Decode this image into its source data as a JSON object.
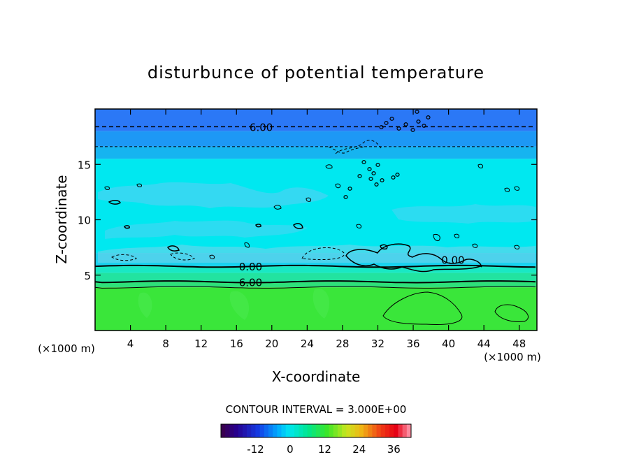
{
  "chart_data": {
    "type": "heatmap",
    "title": "disturbunce of potential temperature",
    "xlabel": "X-coordinate",
    "ylabel": "Z-coordinate",
    "xlim": [
      0,
      50
    ],
    "ylim": [
      0,
      20
    ],
    "x_ticks": [
      "4",
      "8",
      "12",
      "16",
      "20",
      "24",
      "28",
      "32",
      "36",
      "40",
      "44",
      "48"
    ],
    "y_ticks": [
      "5",
      "10",
      "15"
    ],
    "x_unit_left": "(×1000 m)",
    "x_unit_right": "(×1000 m)",
    "contour_interval_label": "CONTOUR INTERVAL = 3.000E+00",
    "contour_labels": [
      {
        "text": "6.00",
        "x": 18.8,
        "z": 18.4
      },
      {
        "text": "0.00",
        "x": 17.6,
        "z": 5.8
      },
      {
        "text": "6.00",
        "x": 17.6,
        "z": 4.4
      },
      {
        "text": "0.00",
        "x": 40.5,
        "z": 6.4
      }
    ],
    "horizontal_contours": [
      {
        "z": 18.4,
        "style": "dashed"
      },
      {
        "z": 16.6,
        "style": "dashed-thin"
      },
      {
        "z": 5.8,
        "style": "solid"
      },
      {
        "z": 4.4,
        "style": "solid"
      },
      {
        "z": 3.9,
        "style": "solid-thin"
      }
    ],
    "field_bands": [
      {
        "z_from": 18.0,
        "z_to": 20.0,
        "color": "#2b78f6"
      },
      {
        "z_from": 16.6,
        "z_to": 18.0,
        "color": "#1d98f5"
      },
      {
        "z_from": 15.5,
        "z_to": 16.6,
        "color": "#16b4f0"
      },
      {
        "z_from": 7.0,
        "z_to": 15.5,
        "color": "#00e8f0"
      },
      {
        "z_from": 5.8,
        "z_to": 7.0,
        "color": "#1ad2ef"
      },
      {
        "z_from": 5.2,
        "z_to": 5.8,
        "color": "#19e8c4"
      },
      {
        "z_from": 4.4,
        "z_to": 5.2,
        "color": "#22e3a0"
      },
      {
        "z_from": 3.9,
        "z_to": 4.4,
        "color": "#2ee07a"
      },
      {
        "z_from": 0.0,
        "z_to": 3.9,
        "color": "#3ae63a"
      }
    ],
    "colorbar": {
      "ticks": [
        "-12",
        "0",
        "12",
        "24",
        "36"
      ],
      "tick_values": [
        -12,
        0,
        12,
        24,
        36
      ],
      "range": [
        -24,
        42
      ]
    }
  }
}
